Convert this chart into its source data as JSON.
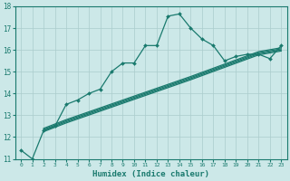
{
  "xlabel": "Humidex (Indice chaleur)",
  "bg_color": "#cce8e8",
  "grid_color": "#aacccc",
  "line_color": "#1a7a6e",
  "xmin": -0.5,
  "xmax": 23.5,
  "ymin": 11,
  "ymax": 18,
  "yticks": [
    11,
    12,
    13,
    14,
    15,
    16,
    17,
    18
  ],
  "xticks": [
    0,
    1,
    2,
    3,
    4,
    5,
    6,
    7,
    8,
    9,
    10,
    11,
    12,
    13,
    14,
    15,
    16,
    17,
    18,
    19,
    20,
    21,
    22,
    23
  ],
  "main_x": [
    0,
    1,
    2,
    3,
    4,
    5,
    6,
    7,
    8,
    9,
    10,
    11,
    12,
    13,
    14,
    15,
    16,
    17,
    18,
    19,
    20,
    21,
    22,
    23
  ],
  "main_y": [
    11.4,
    11.0,
    12.3,
    12.5,
    13.5,
    13.7,
    14.0,
    14.2,
    15.0,
    15.4,
    15.4,
    16.2,
    16.2,
    17.55,
    17.65,
    17.0,
    16.5,
    16.2,
    15.5,
    15.7,
    15.8,
    15.8,
    15.6,
    16.2
  ],
  "line2_x": [
    2,
    3,
    4,
    5,
    6,
    7,
    8,
    9,
    10,
    11,
    12,
    13,
    14,
    15,
    16,
    17,
    18,
    19,
    20,
    21,
    22,
    23
  ],
  "line2_y": [
    12.25,
    12.45,
    12.65,
    12.83,
    13.01,
    13.19,
    13.37,
    13.55,
    13.73,
    13.91,
    14.09,
    14.27,
    14.45,
    14.63,
    14.82,
    15.01,
    15.2,
    15.39,
    15.58,
    15.77,
    15.86,
    15.95
  ],
  "line3_x": [
    2,
    3,
    4,
    5,
    6,
    7,
    8,
    9,
    10,
    11,
    12,
    13,
    14,
    15,
    16,
    17,
    18,
    19,
    20,
    21,
    22,
    23
  ],
  "line3_y": [
    12.3,
    12.5,
    12.7,
    12.88,
    13.06,
    13.24,
    13.42,
    13.6,
    13.78,
    13.96,
    14.14,
    14.32,
    14.5,
    14.68,
    14.87,
    15.06,
    15.25,
    15.44,
    15.63,
    15.82,
    15.91,
    16.0
  ],
  "line4_x": [
    2,
    3,
    4,
    5,
    6,
    7,
    8,
    9,
    10,
    11,
    12,
    13,
    14,
    15,
    16,
    17,
    18,
    19,
    20,
    21,
    22,
    23
  ],
  "line4_y": [
    12.35,
    12.55,
    12.75,
    12.93,
    13.11,
    13.29,
    13.47,
    13.65,
    13.83,
    14.01,
    14.19,
    14.37,
    14.55,
    14.73,
    14.92,
    15.11,
    15.3,
    15.49,
    15.68,
    15.87,
    15.96,
    16.05
  ],
  "line5_x": [
    2,
    3,
    4,
    5,
    6,
    7,
    8,
    9,
    10,
    11,
    12,
    13,
    14,
    15,
    16,
    17,
    18,
    19,
    20,
    21,
    22,
    23
  ],
  "line5_y": [
    12.4,
    12.6,
    12.8,
    12.98,
    13.16,
    13.34,
    13.52,
    13.7,
    13.88,
    14.06,
    14.24,
    14.42,
    14.6,
    14.78,
    14.97,
    15.16,
    15.35,
    15.54,
    15.73,
    15.92,
    16.01,
    16.1
  ]
}
